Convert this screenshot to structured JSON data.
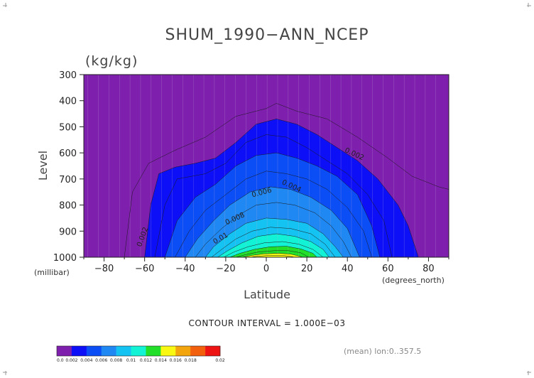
{
  "chart_data": {
    "type": "heatmap",
    "subtype": "filled-contour",
    "title": "SHUM_1990−ANN_NCEP",
    "units": "(kg/kg)",
    "xlabel": "Latitude",
    "ylabel": "Level",
    "x_unit_label": "(degrees_north)",
    "y_unit_label": "(millibar)",
    "xlim": [
      -90,
      90
    ],
    "ylim": [
      1000,
      300
    ],
    "x_ticks": [
      -80,
      -60,
      -40,
      -20,
      0,
      20,
      40,
      60,
      80
    ],
    "y_ticks": [
      300,
      400,
      500,
      600,
      700,
      800,
      900,
      1000
    ],
    "contour_interval_text": "CONTOUR INTERVAL = 1.000E−03",
    "footnote": "(mean) lon:0..357.5",
    "levels": [
      0.0,
      0.002,
      0.004,
      0.006,
      0.008,
      0.01,
      0.012,
      0.014,
      0.016,
      0.018,
      0.02
    ],
    "colorbar_labels": [
      "0.0",
      "0.002",
      "0.004",
      "0.006",
      "0.008",
      "0.01",
      "0.012",
      "0.014",
      "0.016",
      "0.018",
      "0.02"
    ],
    "band_colors": [
      "#7f1fad",
      "#0d0ff7",
      "#0c4ef5",
      "#1f88f2",
      "#15c3f2",
      "#12f2d5",
      "#22e02a",
      "#f8f812",
      "#f2a50d",
      "#f25f0d",
      "#ee1414"
    ],
    "contour_labels": [
      "0.002",
      "0.004",
      "0.006",
      "0.008",
      "0.01",
      "0.002"
    ],
    "isoline_heights": [
      {
        "level": 0.001,
        "points": [
          [
            -70,
            1000
          ],
          [
            -66,
            750
          ],
          [
            -58,
            640
          ],
          [
            -45,
            590
          ],
          [
            -30,
            540
          ],
          [
            -15,
            460
          ],
          [
            0,
            430
          ],
          [
            5,
            410
          ],
          [
            15,
            440
          ],
          [
            30,
            470
          ],
          [
            45,
            540
          ],
          [
            60,
            620
          ],
          [
            72,
            690
          ],
          [
            85,
            730
          ],
          [
            90,
            740
          ]
        ]
      },
      {
        "level": 0.002,
        "points": [
          [
            -60,
            1000
          ],
          [
            -57,
            800
          ],
          [
            -53,
            680
          ],
          [
            -45,
            655
          ],
          [
            -35,
            640
          ],
          [
            -25,
            620
          ],
          [
            -15,
            560
          ],
          [
            -5,
            490
          ],
          [
            5,
            470
          ],
          [
            15,
            490
          ],
          [
            25,
            530
          ],
          [
            35,
            580
          ],
          [
            45,
            630
          ],
          [
            55,
            700
          ],
          [
            65,
            800
          ],
          [
            70,
            880
          ],
          [
            75,
            1000
          ]
        ]
      },
      {
        "level": 0.003,
        "points": [
          [
            -55,
            1000
          ],
          [
            -50,
            800
          ],
          [
            -44,
            700
          ],
          [
            -30,
            680
          ],
          [
            -20,
            640
          ],
          [
            -10,
            560
          ],
          [
            0,
            530
          ],
          [
            10,
            540
          ],
          [
            20,
            580
          ],
          [
            30,
            630
          ],
          [
            40,
            680
          ],
          [
            50,
            760
          ],
          [
            58,
            860
          ],
          [
            62,
            1000
          ]
        ]
      },
      {
        "level": 0.004,
        "points": [
          [
            -50,
            1000
          ],
          [
            -44,
            860
          ],
          [
            -35,
            770
          ],
          [
            -25,
            720
          ],
          [
            -15,
            650
          ],
          [
            -5,
            610
          ],
          [
            5,
            600
          ],
          [
            15,
            620
          ],
          [
            25,
            650
          ],
          [
            35,
            690
          ],
          [
            45,
            760
          ],
          [
            52,
            880
          ],
          [
            56,
            1000
          ]
        ]
      },
      {
        "level": 0.005,
        "points": [
          [
            -45,
            1000
          ],
          [
            -38,
            900
          ],
          [
            -30,
            820
          ],
          [
            -20,
            760
          ],
          [
            -10,
            700
          ],
          [
            0,
            670
          ],
          [
            10,
            680
          ],
          [
            20,
            700
          ],
          [
            30,
            740
          ],
          [
            40,
            810
          ],
          [
            48,
            900
          ],
          [
            52,
            1000
          ]
        ]
      },
      {
        "level": 0.006,
        "points": [
          [
            -40,
            1000
          ],
          [
            -34,
            930
          ],
          [
            -26,
            860
          ],
          [
            -18,
            800
          ],
          [
            -8,
            750
          ],
          [
            2,
            730
          ],
          [
            12,
            740
          ],
          [
            22,
            770
          ],
          [
            32,
            820
          ],
          [
            40,
            890
          ],
          [
            46,
            1000
          ]
        ]
      },
      {
        "level": 0.007,
        "points": [
          [
            -35,
            1000
          ],
          [
            -30,
            950
          ],
          [
            -22,
            890
          ],
          [
            -14,
            840
          ],
          [
            -5,
            800
          ],
          [
            5,
            790
          ],
          [
            14,
            800
          ],
          [
            24,
            830
          ],
          [
            32,
            880
          ],
          [
            38,
            940
          ],
          [
            42,
            1000
          ]
        ]
      },
      {
        "level": 0.008,
        "points": [
          [
            -30,
            1000
          ],
          [
            -26,
            960
          ],
          [
            -18,
            910
          ],
          [
            -10,
            870
          ],
          [
            0,
            850
          ],
          [
            10,
            855
          ],
          [
            20,
            870
          ],
          [
            28,
            910
          ],
          [
            34,
            960
          ],
          [
            38,
            1000
          ]
        ]
      },
      {
        "level": 0.009,
        "points": [
          [
            -27,
            1000
          ],
          [
            -22,
            970
          ],
          [
            -15,
            930
          ],
          [
            -7,
            900
          ],
          [
            2,
            885
          ],
          [
            12,
            890
          ],
          [
            22,
            910
          ],
          [
            29,
            950
          ],
          [
            34,
            1000
          ]
        ]
      },
      {
        "level": 0.01,
        "points": [
          [
            -24,
            1000
          ],
          [
            -19,
            975
          ],
          [
            -12,
            945
          ],
          [
            -4,
            920
          ],
          [
            5,
            910
          ],
          [
            14,
            920
          ],
          [
            22,
            940
          ],
          [
            28,
            970
          ],
          [
            31,
            1000
          ]
        ]
      },
      {
        "level": 0.011,
        "points": [
          [
            -21,
            1000
          ],
          [
            -16,
            980
          ],
          [
            -9,
            960
          ],
          [
            -1,
            945
          ],
          [
            8,
            940
          ],
          [
            16,
            950
          ],
          [
            23,
            970
          ],
          [
            28,
            1000
          ]
        ]
      },
      {
        "level": 0.012,
        "points": [
          [
            -18,
            1000
          ],
          [
            -13,
            985
          ],
          [
            -6,
            970
          ],
          [
            2,
            960
          ],
          [
            10,
            958
          ],
          [
            17,
            968
          ],
          [
            23,
            985
          ],
          [
            25,
            1000
          ]
        ]
      },
      {
        "level": 0.013,
        "points": [
          [
            -15,
            1000
          ],
          [
            -10,
            990
          ],
          [
            -4,
            980
          ],
          [
            4,
            975
          ],
          [
            11,
            975
          ],
          [
            17,
            983
          ],
          [
            21,
            1000
          ]
        ]
      },
      {
        "level": 0.014,
        "points": [
          [
            -12,
            1000
          ],
          [
            -7,
            993
          ],
          [
            -1,
            987
          ],
          [
            6,
            985
          ],
          [
            12,
            988
          ],
          [
            16,
            995
          ],
          [
            18,
            1000
          ]
        ]
      },
      {
        "level": 0.015,
        "points": [
          [
            -8,
            1000
          ],
          [
            -4,
            996
          ],
          [
            2,
            993
          ],
          [
            8,
            993
          ],
          [
            12,
            997
          ],
          [
            14,
            1000
          ]
        ]
      }
    ]
  }
}
